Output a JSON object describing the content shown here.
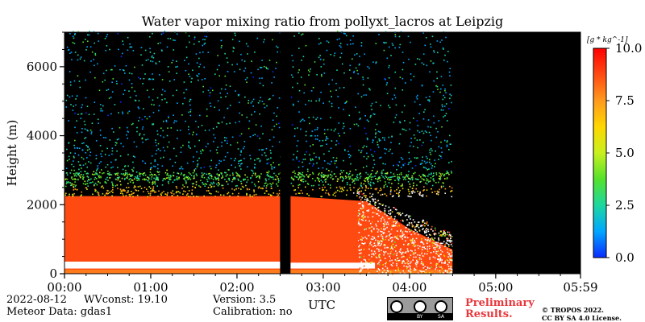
{
  "header": {
    "title": "Water vapor mixing ratio from pollyxt_lacros at Leipzig"
  },
  "chart_data": {
    "type": "heatmap",
    "title": "Water vapor mixing ratio from pollyxt_lacros at Leipzig",
    "xlabel": "UTC",
    "ylabel": "Height (m)",
    "x_ticks": [
      "00:00",
      "01:00",
      "02:00",
      "03:00",
      "04:00",
      "05:00",
      "05:59"
    ],
    "y_ticks": [
      0,
      2000,
      4000,
      6000
    ],
    "xlim_hours": [
      0,
      5.983
    ],
    "ylim": [
      0,
      7000
    ],
    "colorbar": {
      "label": "[g * kg^-1]",
      "range": [
        0.0,
        10.0
      ],
      "ticks": [
        "0.0",
        "2.5",
        "5.0",
        "7.5",
        "10.0"
      ],
      "colormap": [
        "#0a2bff",
        "#00a6ff",
        "#1cd8a0",
        "#55e22b",
        "#c8f01e",
        "#ffd700",
        "#ff9a1e",
        "#ff4a12",
        "#ff0000"
      ]
    },
    "features": {
      "data_gap_hours": [
        2.5,
        2.62
      ],
      "data_end_hours": 4.5,
      "boundary_layer_top_m": 2250,
      "layer_values_g_per_kg": {
        "boundary_layer": 8.5,
        "free_troposphere_noise": 2.0
      }
    }
  },
  "footer": {
    "date": "2022-08-12",
    "wvconst": "WVconst:  19.10",
    "meteor": "Meteor Data: gdas1",
    "version": "Version: 3.5",
    "calibration": "Calibration: no",
    "prelim_line1": "Preliminary",
    "prelim_line2": "Results.",
    "copyright1": "© TROPOS 2022.",
    "copyright2": "CC BY SA 4.0 License.",
    "license_badge": {
      "by": "BY",
      "sa": "SA"
    }
  }
}
